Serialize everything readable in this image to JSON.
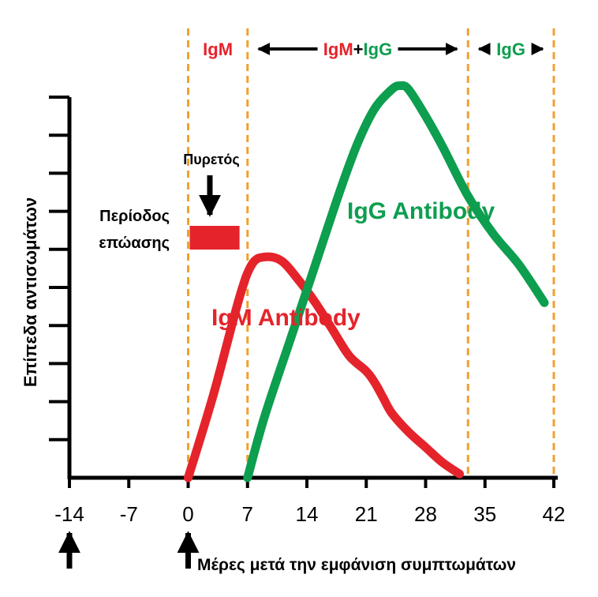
{
  "chart_data": {
    "type": "line",
    "title": "",
    "ylabel": "Επίπεδα αντισωμάτων",
    "xlabel": "Μέρες μετά την εμφάνιση συμπτωμάτων",
    "x_ticks": [
      -14,
      -7,
      0,
      7,
      14,
      21,
      28,
      35,
      42
    ],
    "xlim": [
      -14,
      42
    ],
    "ylim": [
      0,
      10
    ],
    "y_tick_count": 10,
    "y_tick_labels": false,
    "phase_boundaries_days": [
      0,
      7,
      33,
      42
    ],
    "phases": [
      {
        "parts": [
          {
            "text": "IgM",
            "color": "#e5232b"
          }
        ],
        "from": 0,
        "to": 7,
        "arrows": false
      },
      {
        "parts": [
          {
            "text": "IgM",
            "color": "#e5232b"
          },
          {
            "text": "+",
            "color": "#000000"
          },
          {
            "text": "IgG",
            "color": "#0d9e4f"
          }
        ],
        "from": 7,
        "to": 33,
        "arrows": true
      },
      {
        "parts": [
          {
            "text": "IgG",
            "color": "#0d9e4f"
          }
        ],
        "from": 33,
        "to": 42,
        "arrows": true
      }
    ],
    "series": [
      {
        "name": "IgM Antibody",
        "color": "#e5232b",
        "x": [
          0,
          3,
          6,
          7.5,
          9,
          11,
          13,
          15,
          17,
          19,
          21,
          22,
          23,
          24,
          26,
          28,
          30,
          32
        ],
        "y": [
          0,
          2.2,
          4.7,
          5.6,
          5.8,
          5.7,
          5.2,
          4.6,
          3.9,
          3.2,
          2.8,
          2.5,
          2.1,
          1.7,
          1.2,
          0.8,
          0.4,
          0.1
        ]
      },
      {
        "name": "IgG Antibody",
        "color": "#0d9e4f",
        "x": [
          7,
          9,
          12,
          15,
          18,
          20,
          22,
          24,
          25,
          26,
          28,
          30,
          33,
          36,
          39,
          42
        ],
        "y": [
          0,
          1.6,
          3.6,
          5.6,
          7.6,
          8.8,
          9.7,
          10.2,
          10.3,
          10.2,
          9.5,
          8.7,
          7.4,
          6.4,
          5.6,
          4.6
        ]
      }
    ],
    "annotations": {
      "incubation_label_line1": "Περίοδος",
      "incubation_label_line2": "επώασης",
      "fever_label": "Πυρετός",
      "fever_bar": {
        "from": 0,
        "to": 5.5,
        "y": 6.5,
        "color": "#e5232b"
      }
    },
    "bottom_arrows_at": [
      -14,
      0
    ],
    "guide_color": "#f0a030"
  }
}
